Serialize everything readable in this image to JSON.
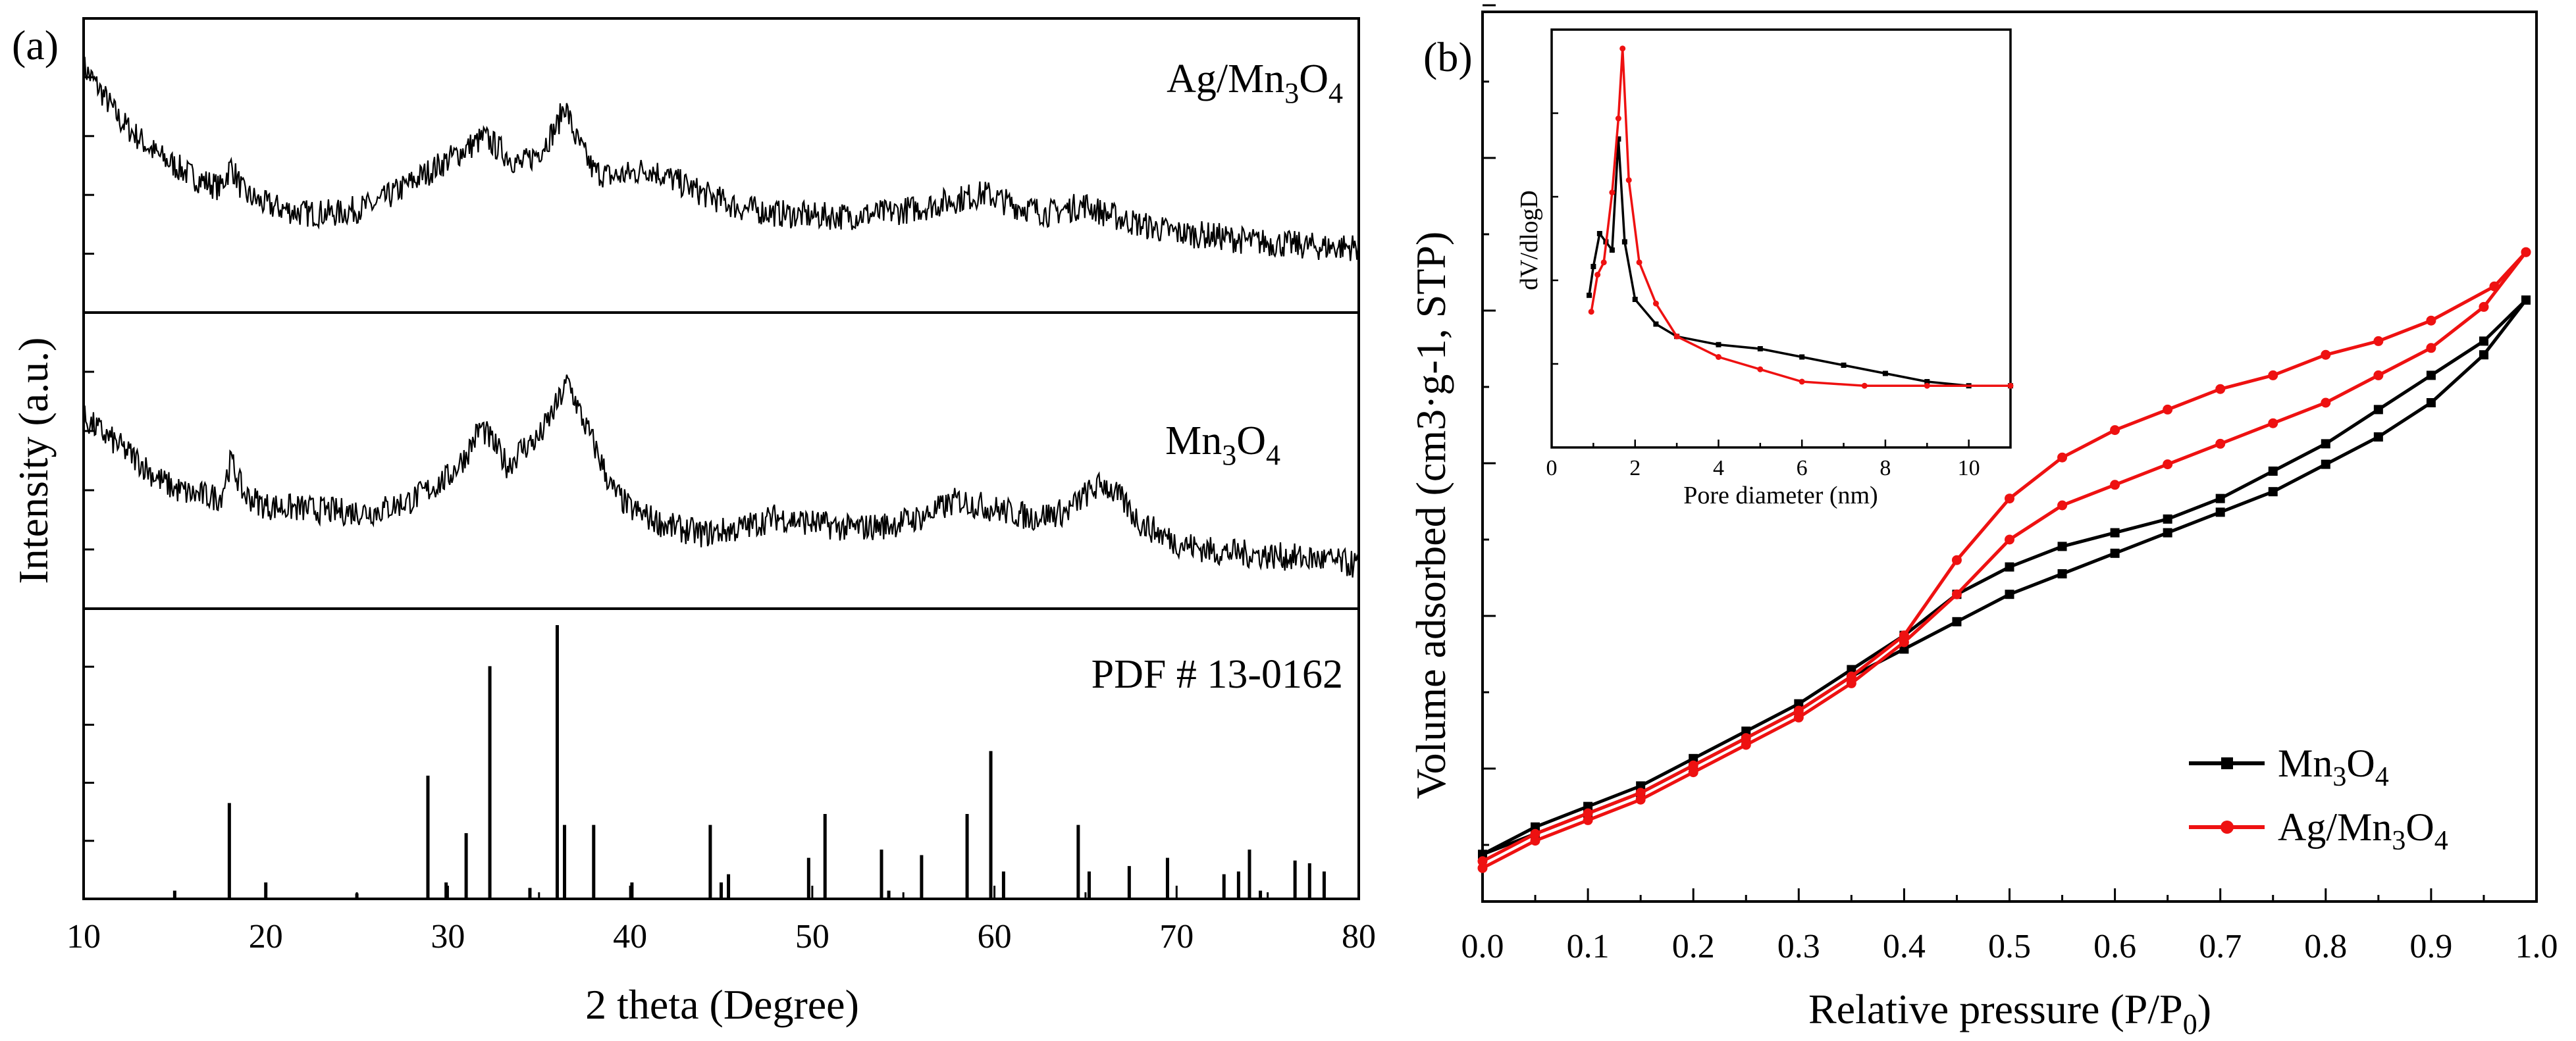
{
  "chart_data": [
    {
      "panel": "(a)",
      "type": "line",
      "xlabel": "2 theta (Degree)",
      "ylabel": "Intensity (a.u.)",
      "xlim": [
        10,
        80
      ],
      "xticks": [
        10,
        20,
        30,
        40,
        50,
        60,
        70,
        80
      ],
      "traces": [
        {
          "name": "Ag/Mn3O4",
          "label_main": "Ag/Mn",
          "label_sub": "3",
          "label_main2": "O",
          "label_sub2": "4",
          "color": "#000000",
          "ylim": [
            0,
            100
          ],
          "base": [
            [
              10,
              85
            ],
            [
              11,
              76
            ],
            [
              12,
              66
            ],
            [
              14,
              54
            ],
            [
              16,
              46
            ],
            [
              17.5,
              42
            ],
            [
              18.1,
              50
            ],
            [
              18.8,
              40
            ],
            [
              20,
              36
            ],
            [
              22,
              33
            ],
            [
              24,
              33
            ],
            [
              26,
              36
            ],
            [
              28,
              44
            ],
            [
              30,
              52
            ],
            [
              31,
              56
            ],
            [
              32,
              60
            ],
            [
              33,
              55
            ],
            [
              34,
              50
            ],
            [
              35,
              55
            ],
            [
              36,
              64
            ],
            [
              36.4,
              72
            ],
            [
              37,
              60
            ],
            [
              38,
              48
            ],
            [
              39,
              46
            ],
            [
              40,
              47
            ],
            [
              41,
              49
            ],
            [
              42,
              46
            ],
            [
              44,
              40
            ],
            [
              46,
              35
            ],
            [
              48,
              33
            ],
            [
              50,
              32
            ],
            [
              52,
              32
            ],
            [
              54,
              33
            ],
            [
              56,
              35
            ],
            [
              58,
              38
            ],
            [
              59.5,
              40
            ],
            [
              61,
              36
            ],
            [
              63,
              33
            ],
            [
              65,
              36
            ],
            [
              66,
              33
            ],
            [
              68,
              29
            ],
            [
              70,
              26
            ],
            [
              72,
              25
            ],
            [
              74,
              23
            ],
            [
              76,
              22
            ],
            [
              78,
              21
            ],
            [
              80,
              21
            ]
          ]
        },
        {
          "name": "Mn3O4",
          "label_main": "Mn",
          "label_sub": "3",
          "label_main2": "O",
          "label_sub2": "4",
          "color": "#000000",
          "ylim": [
            0,
            100
          ],
          "base": [
            [
              10,
              65
            ],
            [
              11,
              60
            ],
            [
              12,
              55
            ],
            [
              13,
              50
            ],
            [
              14,
              44
            ],
            [
              15,
              40
            ],
            [
              16,
              38
            ],
            [
              17.5,
              37
            ],
            [
              18.1,
              50
            ],
            [
              18.8,
              38
            ],
            [
              20,
              34
            ],
            [
              22,
              33
            ],
            [
              24,
              32
            ],
            [
              26,
              32
            ],
            [
              28,
              36
            ],
            [
              30,
              44
            ],
            [
              31,
              52
            ],
            [
              31.8,
              62
            ],
            [
              32.5,
              56
            ],
            [
              33.3,
              48
            ],
            [
              34,
              54
            ],
            [
              35,
              58
            ],
            [
              36,
              70
            ],
            [
              36.6,
              78
            ],
            [
              37.3,
              66
            ],
            [
              38,
              56
            ],
            [
              39,
              40
            ],
            [
              40,
              33
            ],
            [
              42,
              27
            ],
            [
              44,
              24
            ],
            [
              46,
              26
            ],
            [
              48,
              30
            ],
            [
              50,
              28
            ],
            [
              52,
              26
            ],
            [
              54,
              27
            ],
            [
              56,
              30
            ],
            [
              58,
              36
            ],
            [
              60,
              33
            ],
            [
              62,
              30
            ],
            [
              64,
              32
            ],
            [
              65,
              38
            ],
            [
              66,
              42
            ],
            [
              67,
              36
            ],
            [
              68,
              28
            ],
            [
              70,
              21
            ],
            [
              72,
              18
            ],
            [
              74,
              17
            ],
            [
              76,
              16
            ],
            [
              78,
              15
            ],
            [
              80,
              13
            ]
          ]
        }
      ],
      "reference": {
        "label": "PDF # 13-0162",
        "ylim": [
          0,
          100
        ],
        "peaks": [
          {
            "x": 15.0,
            "h": 3
          },
          {
            "x": 18.0,
            "h": 35
          },
          {
            "x": 20.0,
            "h": 6
          },
          {
            "x": 25.0,
            "h": 2
          },
          {
            "x": 28.9,
            "h": 45
          },
          {
            "x": 29.9,
            "h": 6
          },
          {
            "x": 31.0,
            "h": 24
          },
          {
            "x": 32.3,
            "h": 85
          },
          {
            "x": 34.5,
            "h": 4
          },
          {
            "x": 36.0,
            "h": 100
          },
          {
            "x": 36.4,
            "h": 27
          },
          {
            "x": 38.0,
            "h": 27
          },
          {
            "x": 40.1,
            "h": 6
          },
          {
            "x": 44.4,
            "h": 27
          },
          {
            "x": 45.0,
            "h": 6
          },
          {
            "x": 45.4,
            "h": 9
          },
          {
            "x": 49.8,
            "h": 15
          },
          {
            "x": 50.7,
            "h": 31
          },
          {
            "x": 53.8,
            "h": 18
          },
          {
            "x": 54.2,
            "h": 3
          },
          {
            "x": 56.0,
            "h": 16
          },
          {
            "x": 58.5,
            "h": 31
          },
          {
            "x": 59.8,
            "h": 54
          },
          {
            "x": 60.5,
            "h": 10
          },
          {
            "x": 64.6,
            "h": 27
          },
          {
            "x": 65.2,
            "h": 10
          },
          {
            "x": 67.4,
            "h": 12
          },
          {
            "x": 69.5,
            "h": 15
          },
          {
            "x": 72.6,
            "h": 9
          },
          {
            "x": 73.4,
            "h": 10
          },
          {
            "x": 74.0,
            "h": 18
          },
          {
            "x": 74.6,
            "h": 3
          },
          {
            "x": 76.5,
            "h": 14
          },
          {
            "x": 77.3,
            "h": 13
          },
          {
            "x": 78.1,
            "h": 10
          }
        ]
      }
    },
    {
      "panel": "(b)",
      "type": "line",
      "xlabel_main": "Relative pressure (P/P",
      "xlabel_sub": "0",
      "xlabel_end": ")",
      "ylabel": "Volume adsorbed (cm3·g-1, STP)",
      "xlim": [
        0,
        1
      ],
      "ylim": [
        0,
        100
      ],
      "xticks": [
        0.0,
        0.1,
        0.2,
        0.3,
        0.4,
        0.5,
        0.6,
        0.7,
        0.8,
        0.9,
        1.0
      ],
      "xtick_labels": [
        "0.0",
        "0.1",
        "0.2",
        "0.3",
        "0.4",
        "0.5",
        "0.6",
        "0.7",
        "0.8",
        "0.9",
        "1.0"
      ],
      "legend": [
        {
          "main": "Mn",
          "sub": "3",
          "main2": "O",
          "sub2": "4",
          "color": "#000000"
        },
        {
          "main": "Ag/Mn",
          "sub": "3",
          "main2": "O",
          "sub2": "4",
          "color": "#ee1111"
        }
      ],
      "series": [
        {
          "name": "Mn3O4",
          "color": "#000000",
          "adsorption": [
            [
              0.0,
              4
            ],
            [
              0.05,
              7
            ],
            [
              0.1,
              10
            ],
            [
              0.15,
              13
            ],
            [
              0.2,
              17
            ],
            [
              0.25,
              21
            ],
            [
              0.3,
              25
            ],
            [
              0.35,
              30
            ],
            [
              0.4,
              34
            ],
            [
              0.45,
              38
            ],
            [
              0.5,
              42
            ],
            [
              0.55,
              45
            ],
            [
              0.6,
              48
            ],
            [
              0.65,
              51
            ],
            [
              0.7,
              54
            ],
            [
              0.75,
              57
            ],
            [
              0.8,
              61
            ],
            [
              0.85,
              65
            ],
            [
              0.9,
              70
            ],
            [
              0.95,
              77
            ],
            [
              0.99,
              85
            ]
          ],
          "desorption": [
            [
              0.99,
              85
            ],
            [
              0.95,
              79
            ],
            [
              0.9,
              74
            ],
            [
              0.85,
              69
            ],
            [
              0.8,
              64
            ],
            [
              0.75,
              60
            ],
            [
              0.7,
              56
            ],
            [
              0.65,
              53
            ],
            [
              0.6,
              51
            ],
            [
              0.55,
              49
            ],
            [
              0.5,
              46
            ],
            [
              0.45,
              42
            ],
            [
              0.4,
              36
            ],
            [
              0.35,
              31
            ],
            [
              0.3,
              26
            ],
            [
              0.25,
              22
            ],
            [
              0.2,
              18
            ],
            [
              0.15,
              14
            ],
            [
              0.1,
              11
            ],
            [
              0.05,
              8
            ],
            [
              0.0,
              4
            ]
          ]
        },
        {
          "name": "Ag/Mn3O4",
          "color": "#ee1111",
          "adsorption": [
            [
              0.0,
              2
            ],
            [
              0.05,
              6
            ],
            [
              0.1,
              9
            ],
            [
              0.15,
              12
            ],
            [
              0.2,
              16
            ],
            [
              0.25,
              20
            ],
            [
              0.3,
              24
            ],
            [
              0.35,
              29
            ],
            [
              0.4,
              35
            ],
            [
              0.45,
              42
            ],
            [
              0.5,
              50
            ],
            [
              0.55,
              55
            ],
            [
              0.6,
              58
            ],
            [
              0.65,
              61
            ],
            [
              0.7,
              64
            ],
            [
              0.75,
              67
            ],
            [
              0.8,
              70
            ],
            [
              0.85,
              74
            ],
            [
              0.9,
              78
            ],
            [
              0.95,
              84
            ],
            [
              0.99,
              92
            ]
          ],
          "desorption": [
            [
              0.99,
              92
            ],
            [
              0.96,
              87
            ],
            [
              0.9,
              82
            ],
            [
              0.85,
              79
            ],
            [
              0.8,
              77
            ],
            [
              0.75,
              74
            ],
            [
              0.7,
              72
            ],
            [
              0.65,
              69
            ],
            [
              0.6,
              66
            ],
            [
              0.55,
              62
            ],
            [
              0.5,
              56
            ],
            [
              0.45,
              47
            ],
            [
              0.4,
              36
            ],
            [
              0.35,
              30
            ],
            [
              0.3,
              25
            ],
            [
              0.25,
              21
            ],
            [
              0.2,
              17
            ],
            [
              0.15,
              13
            ],
            [
              0.1,
              10
            ],
            [
              0.05,
              7
            ],
            [
              0.0,
              3
            ]
          ]
        }
      ],
      "inset": {
        "xlabel": "Pore diameter (nm)",
        "ylabel": "dV/dlogD",
        "xlim": [
          0,
          11
        ],
        "ylim": [
          0,
          100
        ],
        "xticks": [
          0,
          2,
          4,
          6,
          8,
          10
        ],
        "series": [
          {
            "name": "Mn3O4",
            "color": "#000000",
            "points": [
              [
                0.9,
                37
              ],
              [
                1.0,
                44
              ],
              [
                1.15,
                52
              ],
              [
                1.3,
                50
              ],
              [
                1.45,
                48
              ],
              [
                1.6,
                75
              ],
              [
                1.75,
                50
              ],
              [
                2.0,
                36
              ],
              [
                2.5,
                30
              ],
              [
                3.0,
                27
              ],
              [
                4.0,
                25
              ],
              [
                5.0,
                24
              ],
              [
                6.0,
                22
              ],
              [
                7.0,
                20
              ],
              [
                8.0,
                18
              ],
              [
                9.0,
                16
              ],
              [
                10.0,
                15
              ],
              [
                11.0,
                15
              ]
            ]
          },
          {
            "name": "Ag/Mn3O4",
            "color": "#ee1111",
            "points": [
              [
                0.95,
                33
              ],
              [
                1.1,
                42
              ],
              [
                1.25,
                45
              ],
              [
                1.45,
                62
              ],
              [
                1.6,
                80
              ],
              [
                1.7,
                97
              ],
              [
                1.85,
                65
              ],
              [
                2.1,
                45
              ],
              [
                2.5,
                35
              ],
              [
                3.0,
                27
              ],
              [
                4.0,
                22
              ],
              [
                5.0,
                19
              ],
              [
                6.0,
                16
              ],
              [
                7.5,
                15
              ],
              [
                9.0,
                15
              ],
              [
                11.0,
                15
              ]
            ]
          }
        ]
      }
    }
  ]
}
